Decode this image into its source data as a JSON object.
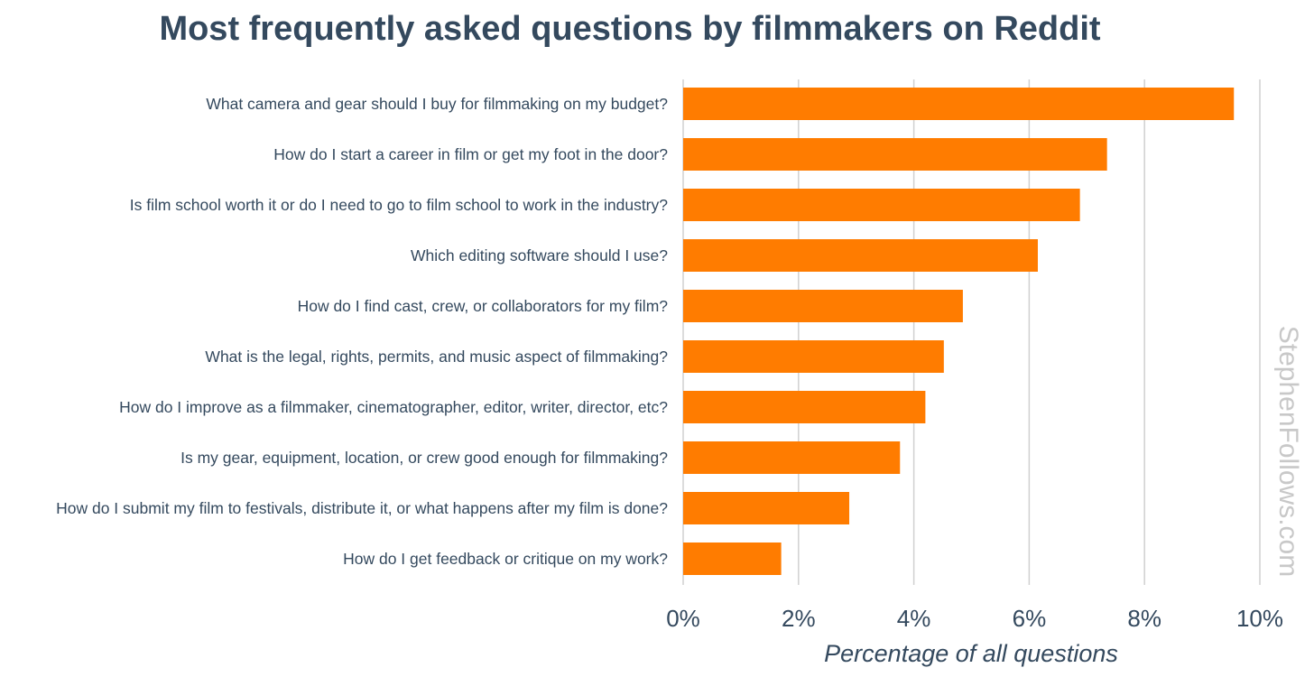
{
  "chart_data": {
    "type": "bar",
    "orientation": "horizontal",
    "title": "Most frequently asked questions by filmmakers on Reddit",
    "xlabel": "Percentage of all questions",
    "ylabel": "",
    "xlim": [
      0,
      10
    ],
    "x_ticks": [
      0,
      2,
      4,
      6,
      8,
      10
    ],
    "tick_suffix": "%",
    "grid": true,
    "legend": "none",
    "bar_color": "#ff7c00",
    "categories": [
      "What camera and gear should I buy for filmmaking on my budget?",
      "How do I start a career in film or get my foot in the door?",
      "Is film school worth it or do I need to go to film school to work in the industry?",
      "Which editing software should I use?",
      "How do I find cast, crew, or collaborators for my film?",
      "What is the legal, rights, permits, and music aspect of filmmaking?",
      "How do I improve as a filmmaker, cinematographer, editor, writer, director, etc?",
      "Is my gear, equipment, location, or crew good enough for filmmaking?",
      "How do I submit my film to festivals, distribute it, or what happens after my film is done?",
      "How do I get feedback or critique on my work?"
    ],
    "values": [
      9.55,
      7.35,
      6.88,
      6.15,
      4.85,
      4.52,
      4.2,
      3.76,
      2.88,
      1.7
    ]
  },
  "watermark": "StephenFollows.com"
}
